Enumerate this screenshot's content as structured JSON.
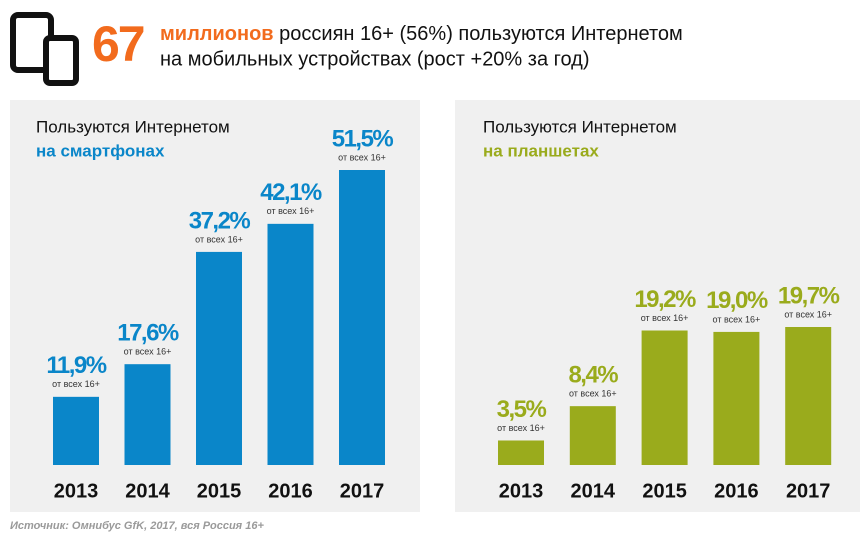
{
  "header": {
    "big_number": "67",
    "highlight": "миллионов",
    "line1": "россиян 16+ (56%) пользуются Интернетом",
    "line2": "на мобильных устройствах (рост +20% за год)"
  },
  "chart_data": [
    {
      "type": "bar",
      "title": "Пользуются Интернетом",
      "subtitle": "на смартфонах",
      "categories": [
        "2013",
        "2014",
        "2015",
        "2016",
        "2017"
      ],
      "values": [
        11.9,
        17.6,
        37.2,
        42.1,
        51.5
      ],
      "value_labels": [
        "11,9%",
        "17,6%",
        "37,2%",
        "42,1%",
        "51,5%"
      ],
      "value_note": "от всех 16+",
      "color": "#0a86c9"
    },
    {
      "type": "bar",
      "title": "Пользуются Интернетом",
      "subtitle": "на планшетах",
      "categories": [
        "2013",
        "2014",
        "2015",
        "2016",
        "2017"
      ],
      "values": [
        3.5,
        8.4,
        19.2,
        19.0,
        19.7
      ],
      "value_labels": [
        "3,5%",
        "8,4%",
        "19,2%",
        "19,0%",
        "19,7%"
      ],
      "value_note": "от всех 16+",
      "color": "#9aab1c"
    }
  ],
  "source": "Источник: Омнибус GfK, 2017, вся Россия 16+"
}
